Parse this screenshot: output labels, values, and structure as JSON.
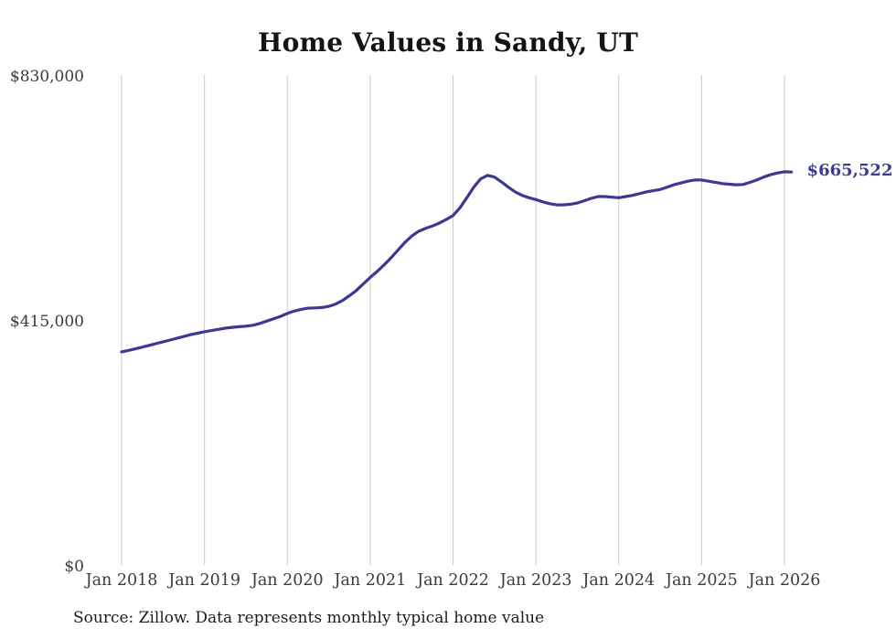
{
  "title": "Home Values in Sandy, UT",
  "source_note": "Source: Zillow. Data represents monthly typical home value",
  "end_label": "$665,522",
  "colors": {
    "line": "#3c3994",
    "gridline": "#cbcbcb",
    "tick_text": "#3b3b3b",
    "title_text": "#141414"
  },
  "chart_data": {
    "type": "line",
    "title": "Home Values in Sandy, UT",
    "series_name": "Typical home value (monthly)",
    "frequency": "monthly",
    "start": "Jan 2018",
    "end": "Feb 2026",
    "final_value": 665522,
    "final_value_label": "$665,522",
    "ylim": [
      0,
      830000
    ],
    "grid": "vertical-only",
    "legend": "none",
    "y_ticks": [
      {
        "label": "$830,000",
        "value": 830000
      },
      {
        "label": "$415,000",
        "value": 415000
      },
      {
        "label": "$0",
        "value": 0
      }
    ],
    "x_tick_labels": [
      "Jan 2018",
      "Jan 2019",
      "Jan 2020",
      "Jan 2021",
      "Jan 2022",
      "Jan 2023",
      "Jan 2024",
      "Jan 2025",
      "Jan 2026"
    ],
    "values": [
      361000,
      363500,
      366000,
      369000,
      372000,
      375000,
      378000,
      381000,
      384000,
      387000,
      390000,
      392500,
      395000,
      397000,
      399000,
      401000,
      402500,
      403500,
      404500,
      406000,
      409000,
      413000,
      417000,
      421000,
      426000,
      430000,
      433000,
      435000,
      435500,
      436000,
      438000,
      442000,
      448000,
      456000,
      465000,
      476000,
      487000,
      497000,
      508000,
      520000,
      533000,
      546000,
      557000,
      565000,
      570000,
      574000,
      579000,
      585000,
      592000,
      605000,
      622000,
      640000,
      654000,
      660000,
      657000,
      649000,
      640000,
      632000,
      626000,
      622000,
      619000,
      615000,
      612000,
      610000,
      610000,
      611000,
      613000,
      617000,
      621000,
      624000,
      624000,
      623000,
      622000,
      624000,
      626000,
      629000,
      632000,
      634000,
      636000,
      640000,
      644000,
      647000,
      650000,
      652000,
      652000,
      650000,
      648000,
      646000,
      645000,
      644000,
      644500,
      648000,
      652000,
      657000,
      661000,
      664000,
      666000,
      665522
    ]
  }
}
